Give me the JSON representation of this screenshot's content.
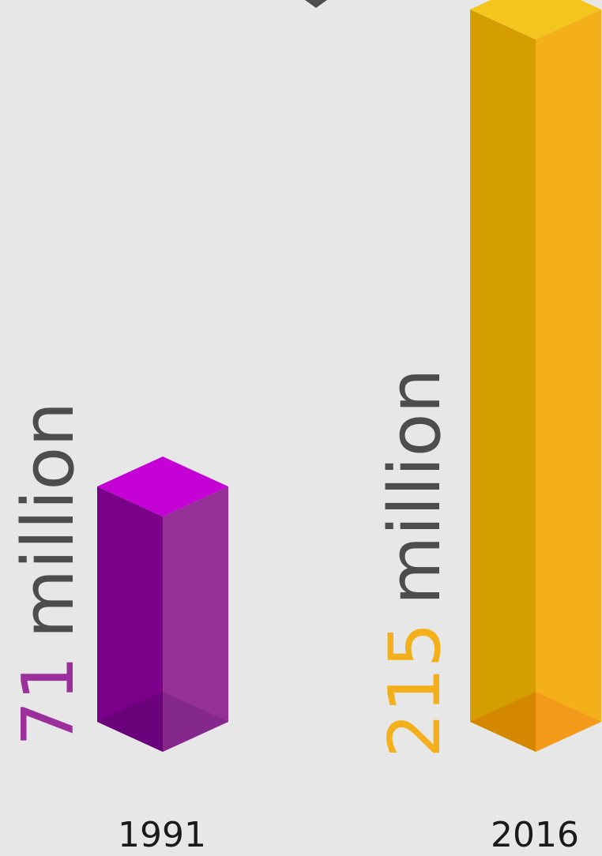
{
  "chart_data": {
    "type": "bar",
    "categories": [
      "1991",
      "2016"
    ],
    "values": [
      71,
      215
    ],
    "unit_label": "million",
    "data_labels": [
      "71",
      "215"
    ],
    "ylim": [
      0,
      215
    ],
    "grid": false,
    "legend": "none",
    "colors": {
      "1991": {
        "top": "#c400d4",
        "left": "#7a008a",
        "right": "#943096",
        "shadow_left": "#6a007a",
        "shadow_right": "#84288e",
        "value_text": "#9b2f9c"
      },
      "2016": {
        "top": "#f4c51c",
        "left": "#d49e00",
        "right": "#f4b01a",
        "shadow_left": "#d48800",
        "shadow_right": "#f49a1a",
        "value_text": "#f4b01a"
      },
      "unit_text": "#4d4d4d",
      "category_text": "#1a1a1a",
      "background": "#e7e7e7"
    }
  }
}
